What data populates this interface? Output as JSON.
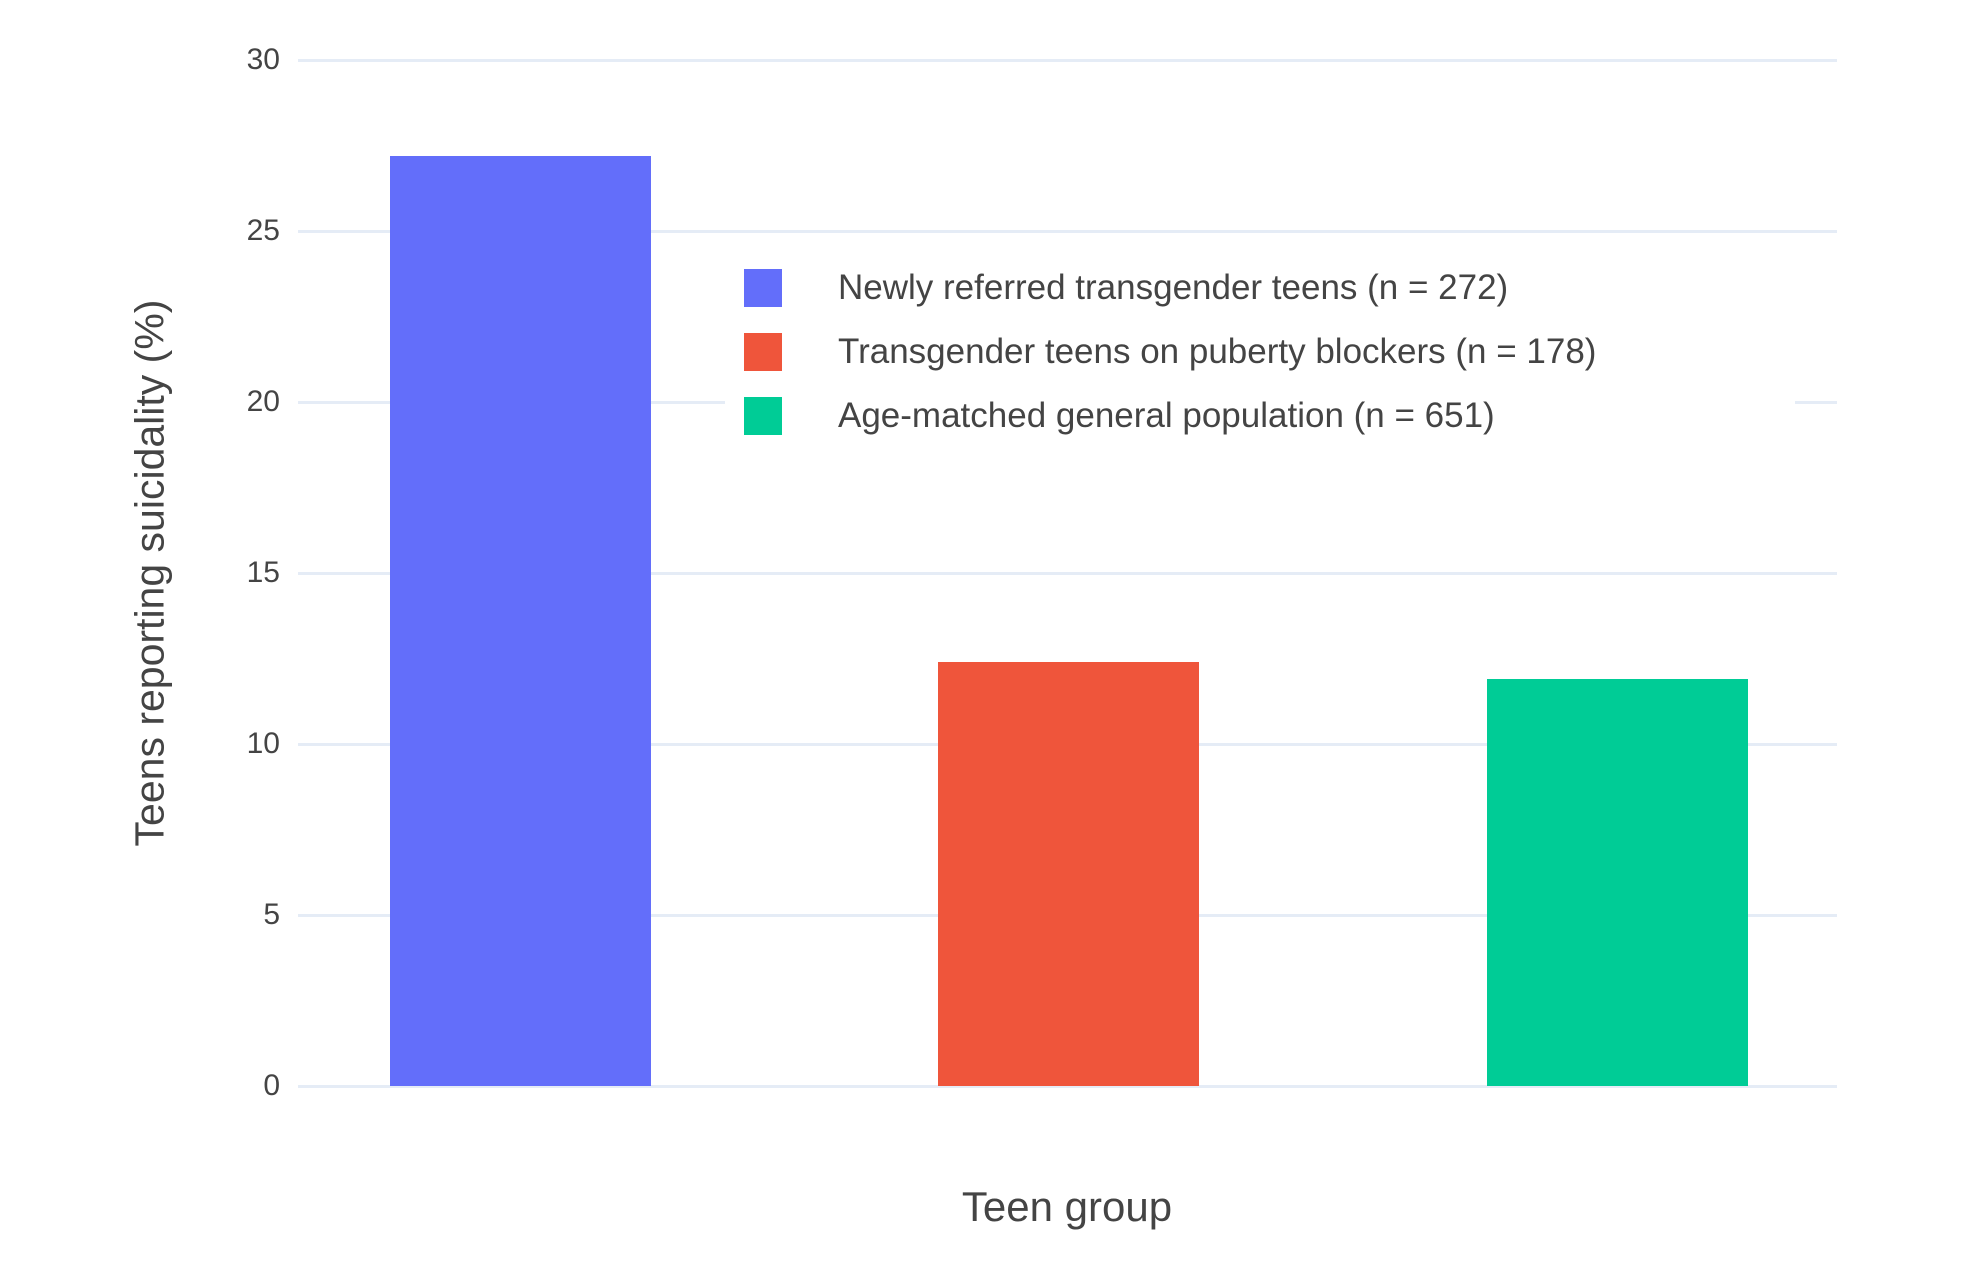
{
  "chart_data": {
    "type": "bar",
    "title": "",
    "xlabel": "Teen group",
    "ylabel": "Teens reporting suicidality (%)",
    "ylim": [
      0,
      30
    ],
    "yticks": [
      0,
      5,
      10,
      15,
      20,
      25,
      30
    ],
    "ytick_labels": [
      "0",
      "5",
      "10",
      "15",
      "20",
      "25",
      "30"
    ],
    "grid": true,
    "legend_position": "inside-top-center",
    "categories": [
      "Newly referred transgender teens",
      "Transgender teens on puberty blockers",
      "Age-matched general population"
    ],
    "series": [
      {
        "name": "Newly referred transgender teens (n = 272)",
        "value": 27.2,
        "color": "#636EFA"
      },
      {
        "name": "Transgender teens on puberty blockers (n = 178)",
        "value": 12.4,
        "color": "#EF553B"
      },
      {
        "name": "Age-matched general population (n = 651)",
        "value": 11.9,
        "color": "#00CC96"
      }
    ],
    "colors": {
      "grid": "#E5ECF6",
      "text": "#444444",
      "background": "#FFFFFF"
    }
  }
}
